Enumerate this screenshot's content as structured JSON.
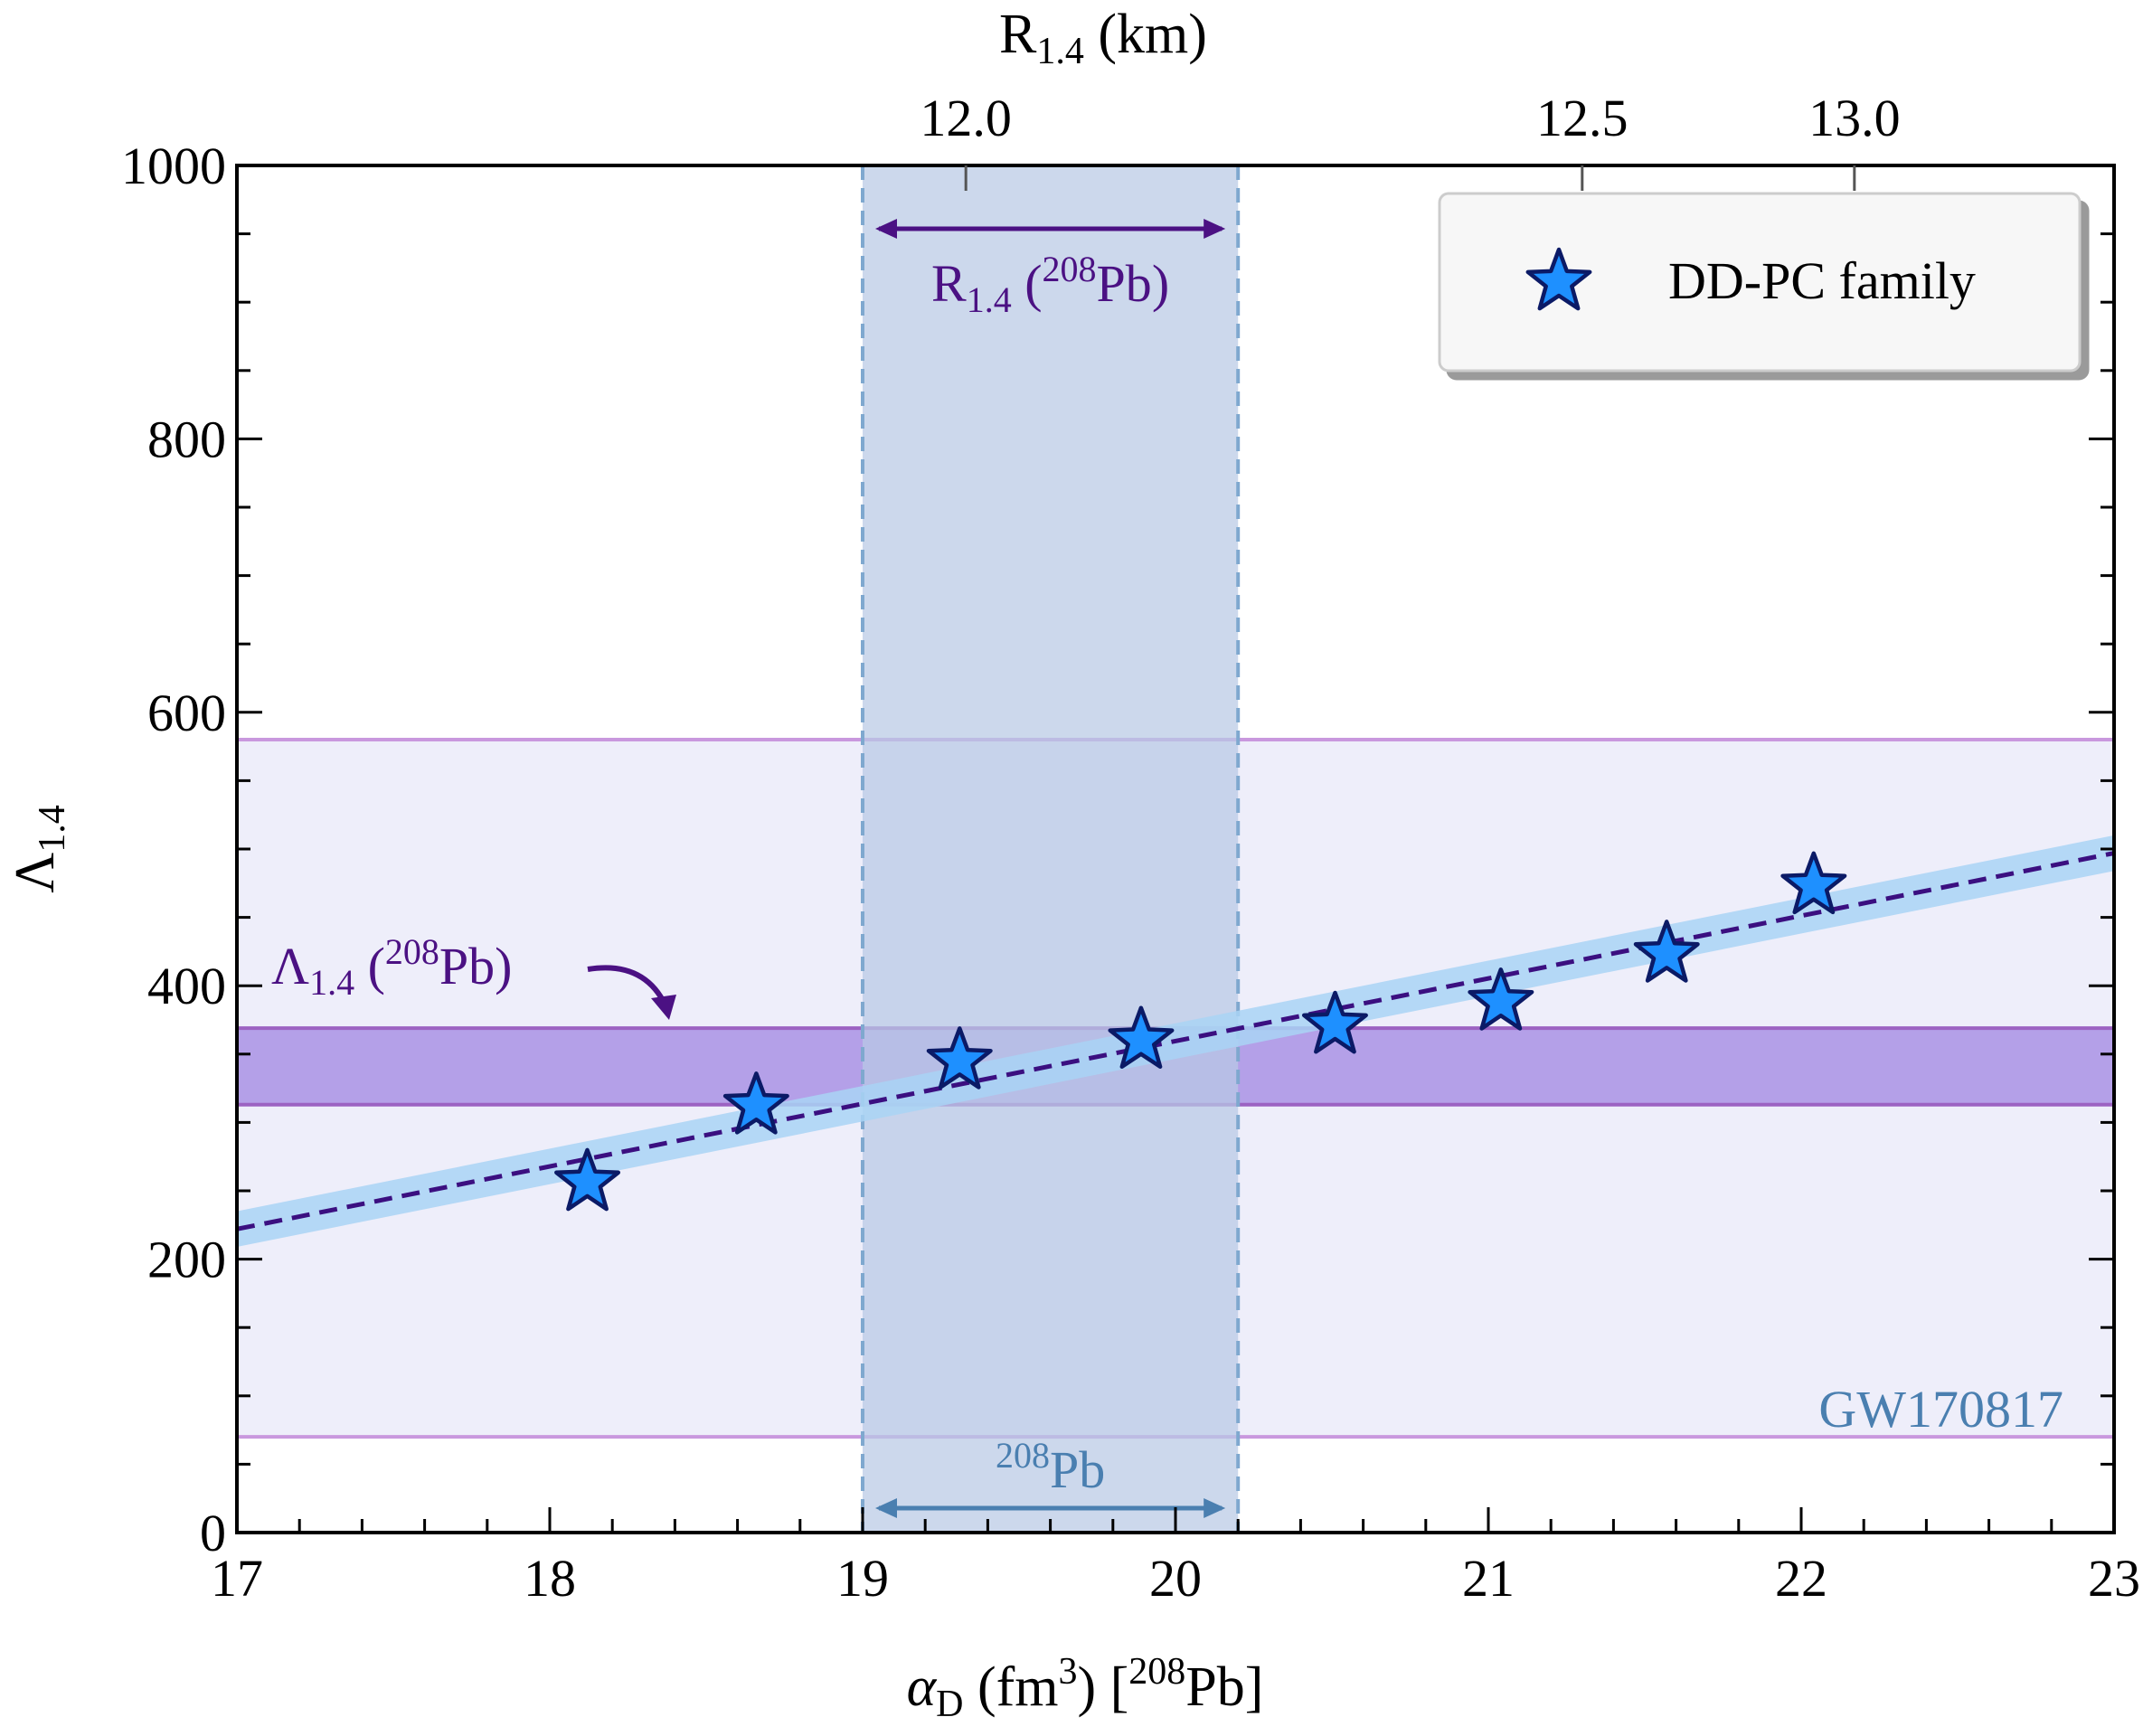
{
  "chart_data": {
    "type": "scatter",
    "title": "",
    "xlabel": {
      "symbol": "α",
      "sub": "D",
      "pre": " (fm",
      "sup": "3",
      "mid": ") [",
      "iso_sup": "208",
      "iso": "Pb",
      "post": "]"
    },
    "ylabel": {
      "symbol": "Λ",
      "sub": "1.4"
    },
    "top_axis_label": {
      "main": "R",
      "sub": "1.4",
      "rest": " (km)"
    },
    "xlim": [
      17,
      23
    ],
    "ylim": [
      0,
      1000
    ],
    "x_major_ticks": [
      17,
      18,
      19,
      20,
      21,
      22,
      23
    ],
    "x_tick_labels": [
      "17",
      "18",
      "19",
      "20",
      "21",
      "22",
      "23"
    ],
    "y_major_ticks": [
      0,
      200,
      400,
      600,
      800,
      1000
    ],
    "y_tick_labels": [
      "0",
      "200",
      "400",
      "600",
      "800",
      "1000"
    ],
    "top_ticks": [
      {
        "x": 19.33,
        "label": "12.0"
      },
      {
        "x": 21.3,
        "label": "12.5"
      },
      {
        "x": 22.17,
        "label": "13.0"
      }
    ],
    "series": [
      {
        "name": "DD-PC family",
        "marker": "star",
        "color": "#1e90ff",
        "edge_color": "#0b1a66",
        "x": [
          18.12,
          18.66,
          19.31,
          19.89,
          20.51,
          21.04,
          21.57,
          22.04
        ],
        "y": [
          256,
          312,
          345,
          360,
          371,
          388,
          423,
          473
        ]
      }
    ],
    "fit_line": {
      "x": [
        17,
        23
      ],
      "y": [
        222,
        497
      ],
      "band_halfwidth": 13,
      "color": "#3b0f80",
      "band_color": "#a9d4f5"
    },
    "bands": [
      {
        "name": "GW170817",
        "label": "GW170817",
        "axis": "y",
        "range": [
          70,
          580
        ],
        "fill": "#eeeefa",
        "edge": "#c998de"
      },
      {
        "name": "lambda-208pb",
        "axis": "y",
        "range": [
          313,
          369
        ],
        "fill": "#b4a0e8",
        "edge": "#9c62c2"
      },
      {
        "name": "208pb-alpha",
        "axis": "x",
        "range": [
          19.0,
          20.2
        ],
        "fill": "#b9c9e4",
        "edge": "#7fa8cf"
      }
    ],
    "annotations": {
      "r14_pb": {
        "main": "R",
        "sub": "1.4",
        "open": " (",
        "sup": "208",
        "iso": "Pb",
        "close": ")",
        "color": "#4b1183"
      },
      "lambda_pb": {
        "main": "Λ",
        "sub": "1.4",
        "open": " (",
        "sup": "208",
        "iso": "Pb",
        "close": ")",
        "color": "#4b1183"
      },
      "pb208": {
        "sup": "208",
        "iso": "Pb",
        "color": "#4a7fb0"
      },
      "gw_color": "#4a7fb0"
    },
    "legend": {
      "position": "top-right",
      "entries": [
        "DD-PC family"
      ]
    }
  }
}
